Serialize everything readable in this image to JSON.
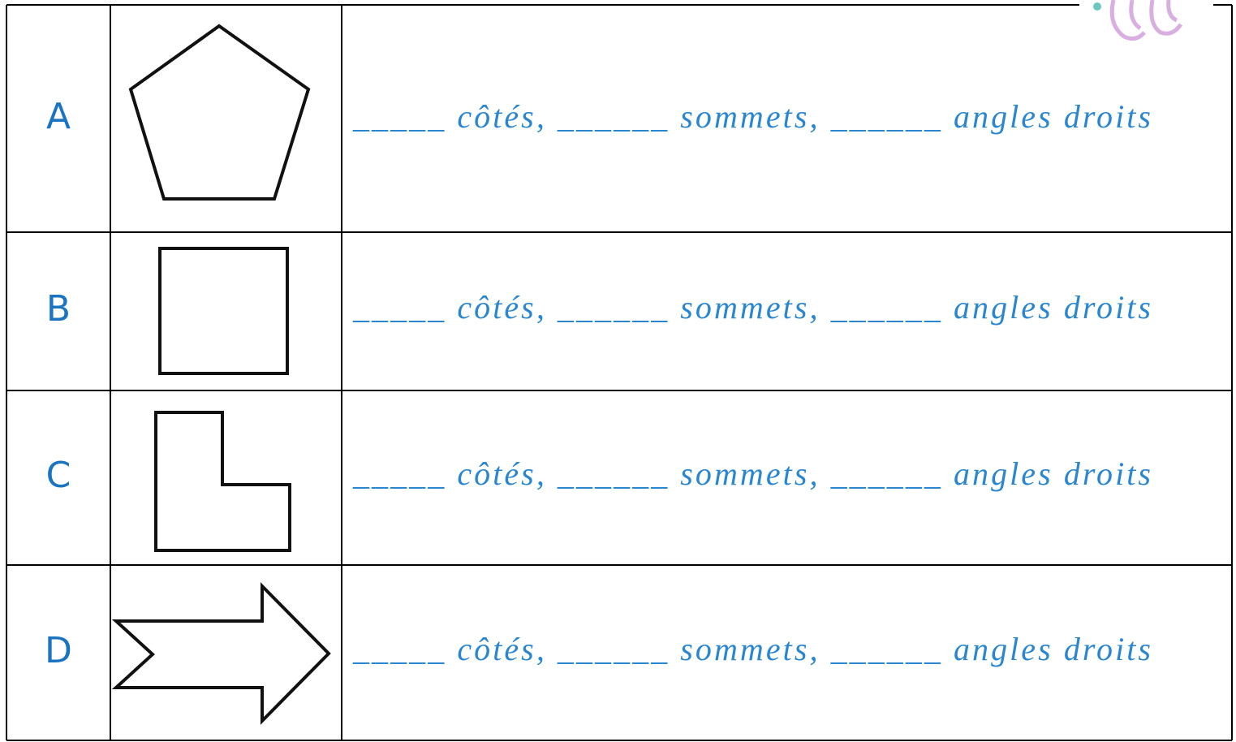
{
  "rows": [
    {
      "label": "A",
      "text": "_____ côtés, ______ sommets, ______ angles droits"
    },
    {
      "label": "B",
      "text": "_____ côtés, ______ sommets, ______ angles droits"
    },
    {
      "label": "C",
      "text": "_____ côtés, ______ sommets, ______ angles droits"
    },
    {
      "label": "D",
      "text": "_____ côtés, ______ sommets, ______ angles droits"
    }
  ]
}
